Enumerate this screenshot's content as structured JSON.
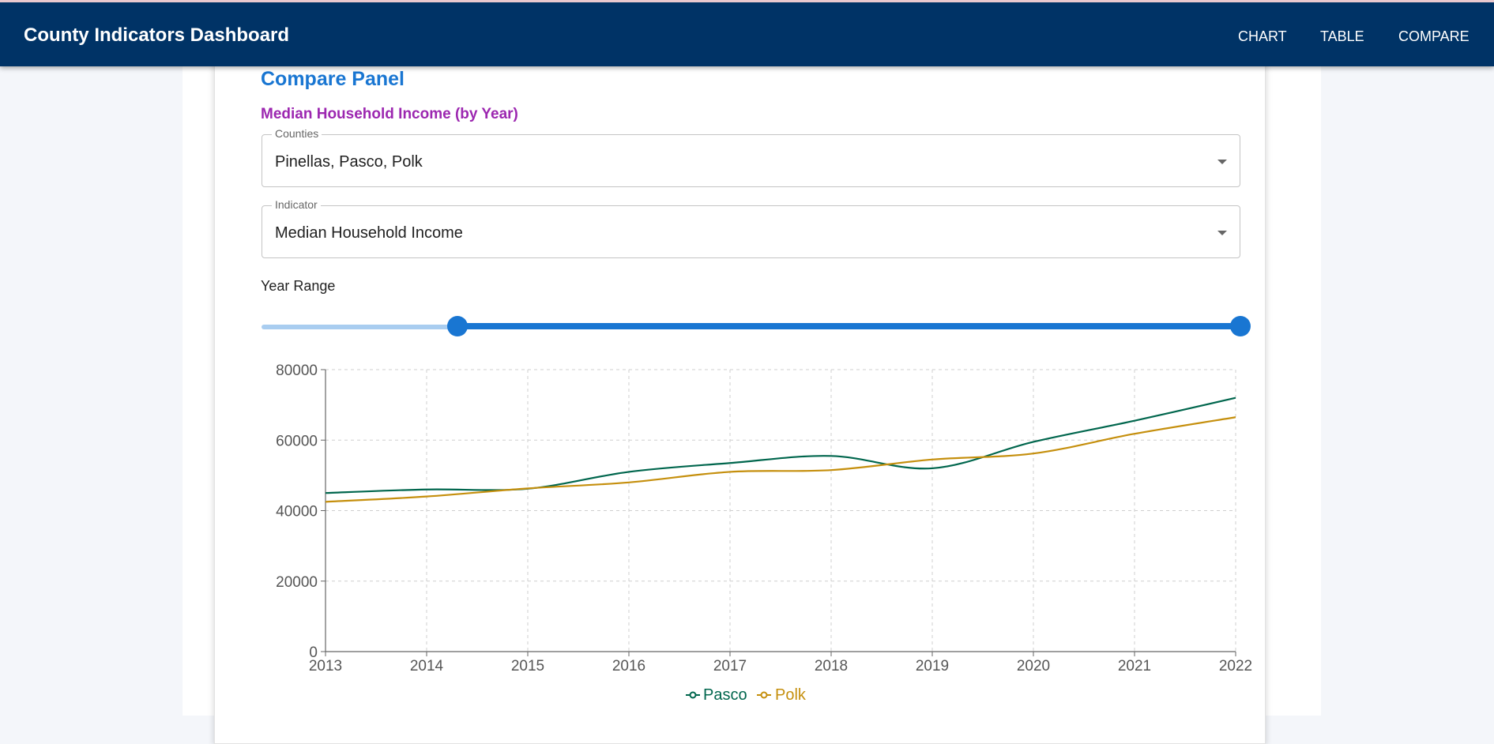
{
  "app": {
    "title": "County Indicators Dashboard",
    "nav": [
      "CHART",
      "TABLE",
      "COMPARE"
    ]
  },
  "panel": {
    "title": "Compare Panel",
    "subtitle": "Median Household Income (by Year)",
    "counties_label": "Counties",
    "counties_value": "Pinellas, Pasco, Polk",
    "indicator_label": "Indicator",
    "indicator_value": "Median Household Income",
    "year_range_label": "Year Range",
    "year_range_start_fraction": 0.2,
    "year_range_end_fraction": 1.0
  },
  "colors": {
    "header": "#003366",
    "accent": "#1976d2",
    "subtitle": "#9c27b0",
    "pasco": "#00664d",
    "polk": "#c58f0d"
  },
  "chart_data": {
    "type": "line",
    "title": "",
    "xlabel": "",
    "ylabel": "",
    "x": [
      2013,
      2014,
      2015,
      2016,
      2017,
      2018,
      2019,
      2020,
      2021,
      2022
    ],
    "xlim": [
      2013,
      2022
    ],
    "ylim": [
      0,
      80000
    ],
    "yticks": [
      0,
      20000,
      40000,
      60000,
      80000
    ],
    "grid": true,
    "legend_position": "bottom-center",
    "series": [
      {
        "name": "Pasco",
        "color": "#00664d",
        "values": [
          45000,
          46000,
          46200,
          51000,
          53500,
          55500,
          52000,
          59500,
          65500,
          72000
        ]
      },
      {
        "name": "Polk",
        "color": "#c58f0d",
        "values": [
          42500,
          44000,
          46300,
          48000,
          51000,
          51500,
          54500,
          56200,
          61800,
          66500
        ]
      }
    ]
  }
}
